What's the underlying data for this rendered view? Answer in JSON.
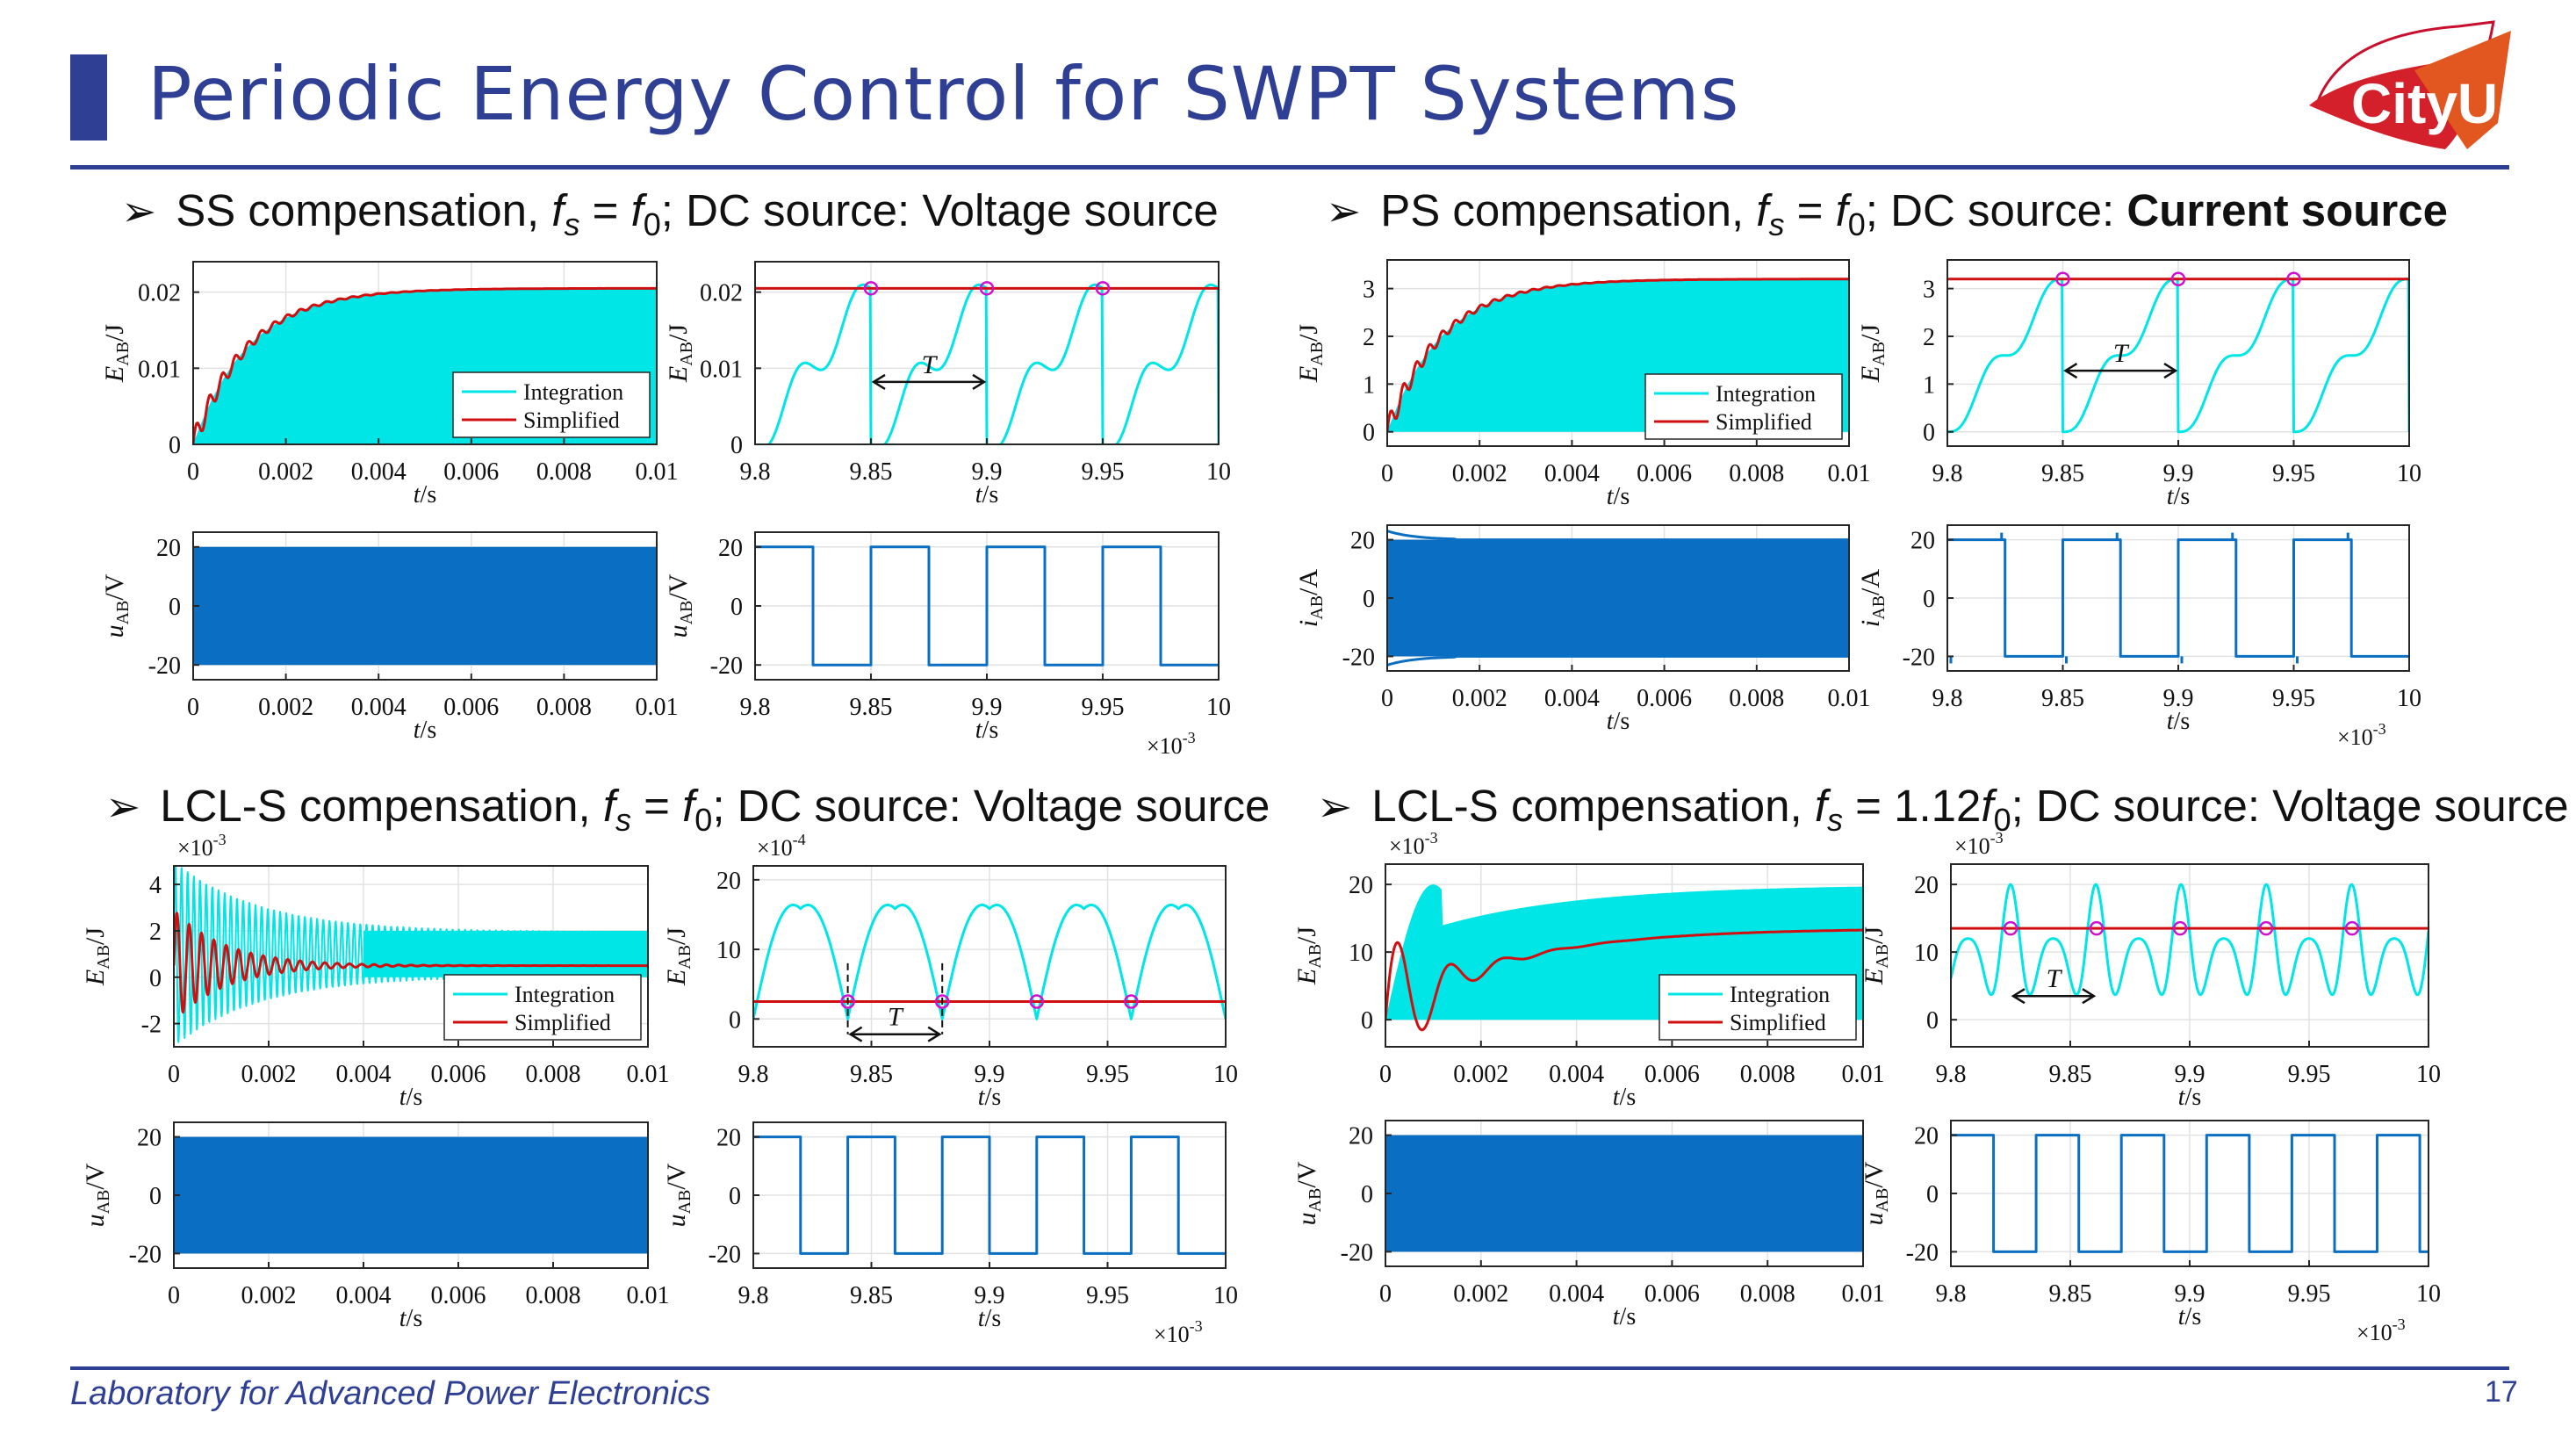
{
  "title": "Periodic Energy Control for SWPT Systems",
  "footer": "Laboratory for Advanced Power Electronics",
  "page_number": "17",
  "logo_text": "CityU",
  "sections": [
    {
      "id": "ss",
      "parts": [
        {
          "t": "SS compensation, "
        },
        {
          "t": "f",
          "i": true
        },
        {
          "t": "s",
          "i": true,
          "sub": true
        },
        {
          "t": " = "
        },
        {
          "t": "f",
          "i": true
        },
        {
          "t": "0",
          "sub": true
        },
        {
          "t": "; DC source: Voltage source"
        }
      ]
    },
    {
      "id": "ps",
      "parts": [
        {
          "t": "PS compensation, "
        },
        {
          "t": "f",
          "i": true
        },
        {
          "t": "s",
          "i": true,
          "sub": true
        },
        {
          "t": " = "
        },
        {
          "t": "f",
          "i": true
        },
        {
          "t": "0",
          "sub": true
        },
        {
          "t": "; DC source: "
        },
        {
          "t": "Current source",
          "b": true
        }
      ]
    },
    {
      "id": "lcls1",
      "parts": [
        {
          "t": "LCL-S compensation, "
        },
        {
          "t": "f",
          "i": true
        },
        {
          "t": "s",
          "i": true,
          "sub": true
        },
        {
          "t": " = "
        },
        {
          "t": "f",
          "i": true
        },
        {
          "t": "0",
          "sub": true
        },
        {
          "t": "; DC source: Voltage source"
        }
      ]
    },
    {
      "id": "lcls2",
      "parts": [
        {
          "t": "LCL-S compensation, "
        },
        {
          "t": "f",
          "i": true
        },
        {
          "t": "s",
          "i": true,
          "sub": true
        },
        {
          "t": " = 1.12"
        },
        {
          "t": "f",
          "i": true
        },
        {
          "t": "0",
          "sub": true
        },
        {
          "t": "; DC source: Voltage source"
        }
      ]
    }
  ],
  "colors": {
    "accent": "#2e3f94",
    "integration": "#00e5e5",
    "simplified": "#d01010",
    "fill_blue": "#0a6fc2",
    "marker": "#d010d0"
  },
  "chart_data": [
    {
      "id": "ss-energy-full",
      "type": "area",
      "xlabel": "t/s",
      "ylabel": "E_AB/J",
      "xlim": [
        0,
        0.01
      ],
      "ylim": [
        0,
        0.024
      ],
      "xticks": [
        "0",
        "0.002",
        "0.004",
        "0.006",
        "0.008",
        "0.01"
      ],
      "yticks": [
        "0",
        "0.01",
        "0.02"
      ],
      "legend": [
        "Integration",
        "Simplified"
      ],
      "legend_placement": "bottom-right",
      "series": [
        {
          "name": "Integration",
          "envelope_max": 0.0205
        },
        {
          "name": "Simplified",
          "final_value": 0.0205,
          "time_constant": 0.0012
        }
      ]
    },
    {
      "id": "ss-energy-zoom",
      "type": "line",
      "xlabel": "t/s",
      "ylabel": "E_AB/J",
      "xlim": [
        9.8,
        10
      ],
      "ylim": [
        0,
        0.024
      ],
      "xticks": [
        "9.8",
        "9.85",
        "9.9",
        "9.95",
        "10"
      ],
      "yticks": [
        "0",
        "0.01",
        "0.02"
      ],
      "series": [
        {
          "name": "Integration",
          "period": 0.05,
          "peak": 0.0205
        },
        {
          "name": "Simplified",
          "value": 0.0205
        }
      ],
      "markers_x": [
        9.85,
        9.9,
        9.95
      ],
      "annotation": "T"
    },
    {
      "id": "ss-voltage-full",
      "type": "area",
      "xlabel": "t/s",
      "ylabel": "u_AB/V",
      "xlim": [
        0,
        0.01
      ],
      "ylim": [
        -25,
        25
      ],
      "xticks": [
        "0",
        "0.002",
        "0.004",
        "0.006",
        "0.008",
        "0.01"
      ],
      "yticks": [
        "-20",
        "0",
        "20"
      ],
      "series": [
        {
          "name": "u_AB",
          "amplitude": 20
        }
      ]
    },
    {
      "id": "ss-voltage-zoom",
      "type": "line",
      "xlabel": "t/s",
      "ylabel": "u_AB/V",
      "xlim": [
        9.8,
        10
      ],
      "ylim": [
        -25,
        25
      ],
      "xticks": [
        "9.8",
        "9.85",
        "9.9",
        "9.95",
        "10"
      ],
      "yticks": [
        "-20",
        "0",
        "20"
      ],
      "x_multiplier": "×10-3",
      "series": [
        {
          "name": "u_AB",
          "high_intervals": [
            [
              9.8,
              9.825
            ],
            [
              9.85,
              9.875
            ],
            [
              9.9,
              9.925
            ],
            [
              9.95,
              9.975
            ]
          ],
          "amplitude": 20
        }
      ]
    },
    {
      "id": "ps-energy-full",
      "type": "area",
      "xlabel": "t/s",
      "ylabel": "E_AB/J",
      "xlim": [
        0,
        0.01
      ],
      "ylim": [
        -0.3,
        3.6
      ],
      "xticks": [
        "0",
        "0.002",
        "0.004",
        "0.006",
        "0.008",
        "0.01"
      ],
      "yticks": [
        "0",
        "1",
        "2",
        "3"
      ],
      "legend": [
        "Integration",
        "Simplified"
      ],
      "legend_placement": "bottom-right",
      "series": [
        {
          "name": "Integration",
          "envelope_max": 3.2
        },
        {
          "name": "Simplified",
          "final_value": 3.2,
          "time_constant": 0.0012
        }
      ]
    },
    {
      "id": "ps-energy-zoom",
      "type": "line",
      "xlabel": "t/s",
      "ylabel": "E_AB/J",
      "xlim": [
        9.8,
        10
      ],
      "ylim": [
        -0.3,
        3.6
      ],
      "xticks": [
        "9.8",
        "9.85",
        "9.9",
        "9.95",
        "10"
      ],
      "yticks": [
        "0",
        "1",
        "2",
        "3"
      ],
      "series": [
        {
          "name": "Integration",
          "period": 0.05,
          "peak": 3.2
        },
        {
          "name": "Simplified",
          "value": 3.2
        }
      ],
      "markers_x": [
        9.85,
        9.9,
        9.95
      ],
      "annotation": "T"
    },
    {
      "id": "ps-current-full",
      "type": "area",
      "xlabel": "t/s",
      "ylabel": "i_AB/A",
      "xlim": [
        0,
        0.01
      ],
      "ylim": [
        -25,
        25
      ],
      "xticks": [
        "0",
        "0.002",
        "0.004",
        "0.006",
        "0.008",
        "0.01"
      ],
      "yticks": [
        "-20",
        "0",
        "20"
      ],
      "series": [
        {
          "name": "i_AB",
          "amplitude": 20
        }
      ]
    },
    {
      "id": "ps-current-zoom",
      "type": "line",
      "xlabel": "t/s",
      "ylabel": "i_AB/A",
      "xlim": [
        9.8,
        10
      ],
      "ylim": [
        -25,
        25
      ],
      "xticks": [
        "9.8",
        "9.85",
        "9.9",
        "9.95",
        "10"
      ],
      "yticks": [
        "-20",
        "0",
        "20"
      ],
      "x_multiplier": "×10-3",
      "series": [
        {
          "name": "i_AB",
          "high_intervals": [
            [
              9.8,
              9.825
            ],
            [
              9.85,
              9.875
            ],
            [
              9.9,
              9.925
            ],
            [
              9.95,
              9.975
            ]
          ],
          "amplitude": 20
        }
      ]
    },
    {
      "id": "lcls1-energy-full",
      "type": "line",
      "xlabel": "t/s",
      "ylabel": "E_AB/J",
      "y_multiplier": "×10-3",
      "xlim": [
        0,
        0.01
      ],
      "ylim": [
        -3,
        4.8
      ],
      "xticks": [
        "0",
        "0.002",
        "0.004",
        "0.006",
        "0.008",
        "0.01"
      ],
      "yticks": [
        "-2",
        "0",
        "2",
        "4"
      ],
      "legend": [
        "Integration",
        "Simplified"
      ],
      "legend_placement": "bottom-right",
      "series": [
        {
          "name": "Integration",
          "final_band": [
            0,
            2
          ]
        },
        {
          "name": "Simplified",
          "final_value": 0.5
        }
      ]
    },
    {
      "id": "lcls1-energy-zoom",
      "type": "line",
      "xlabel": "t/s",
      "ylabel": "E_AB/J",
      "y_multiplier": "×10-4",
      "xlim": [
        9.8,
        10
      ],
      "ylim": [
        -4,
        22
      ],
      "xticks": [
        "9.8",
        "9.85",
        "9.9",
        "9.95",
        "10"
      ],
      "yticks": [
        "0",
        "10",
        "20"
      ],
      "series": [
        {
          "name": "Integration",
          "peak": 18,
          "period": 0.04
        },
        {
          "name": "Simplified",
          "value": 2.5
        }
      ],
      "markers_x": [
        9.84,
        9.88,
        9.92,
        9.96
      ],
      "annotation": "T"
    },
    {
      "id": "lcls1-voltage-full",
      "type": "area",
      "xlabel": "t/s",
      "ylabel": "u_AB/V",
      "xlim": [
        0,
        0.01
      ],
      "ylim": [
        -25,
        25
      ],
      "xticks": [
        "0",
        "0.002",
        "0.004",
        "0.006",
        "0.008",
        "0.01"
      ],
      "yticks": [
        "-20",
        "0",
        "20"
      ],
      "series": [
        {
          "name": "u_AB",
          "amplitude": 20
        }
      ]
    },
    {
      "id": "lcls1-voltage-zoom",
      "type": "line",
      "xlabel": "t/s",
      "ylabel": "u_AB/V",
      "xlim": [
        9.8,
        10
      ],
      "ylim": [
        -25,
        25
      ],
      "xticks": [
        "9.8",
        "9.85",
        "9.9",
        "9.95",
        "10"
      ],
      "yticks": [
        "-20",
        "0",
        "20"
      ],
      "x_multiplier": "×10-3",
      "series": [
        {
          "name": "u_AB",
          "high_intervals": [
            [
              9.8,
              9.82
            ],
            [
              9.84,
              9.86
            ],
            [
              9.88,
              9.9
            ],
            [
              9.92,
              9.94
            ],
            [
              9.96,
              9.98
            ]
          ],
          "amplitude": 20
        }
      ]
    },
    {
      "id": "lcls2-energy-full",
      "type": "area",
      "xlabel": "t/s",
      "ylabel": "E_AB/J",
      "y_multiplier": "×10-3",
      "xlim": [
        0,
        0.01
      ],
      "ylim": [
        -4,
        23
      ],
      "xticks": [
        "0",
        "0.002",
        "0.004",
        "0.006",
        "0.008",
        "0.01"
      ],
      "yticks": [
        "0",
        "10",
        "20"
      ],
      "legend": [
        "Integration",
        "Simplified"
      ],
      "legend_placement": "bottom-right",
      "series": [
        {
          "name": "Integration",
          "envelope_max": 20
        },
        {
          "name": "Simplified",
          "final_value": 13.5
        }
      ]
    },
    {
      "id": "lcls2-energy-zoom",
      "type": "line",
      "xlabel": "t/s",
      "ylabel": "E_AB/J",
      "y_multiplier": "×10-3",
      "xlim": [
        9.8,
        10
      ],
      "ylim": [
        -4,
        23
      ],
      "xticks": [
        "9.8",
        "9.85",
        "9.9",
        "9.95",
        "10"
      ],
      "yticks": [
        "0",
        "10",
        "20"
      ],
      "series": [
        {
          "name": "Integration",
          "peak": 20,
          "period": 0.0357
        },
        {
          "name": "Simplified",
          "value": 13.5
        }
      ],
      "markers_x": [
        9.825,
        9.861,
        9.896,
        9.932,
        9.968
      ],
      "annotation": "T"
    },
    {
      "id": "lcls2-voltage-full",
      "type": "area",
      "xlabel": "t/s",
      "ylabel": "u_AB/V",
      "xlim": [
        0,
        0.01
      ],
      "ylim": [
        -25,
        25
      ],
      "xticks": [
        "0",
        "0.002",
        "0.004",
        "0.006",
        "0.008",
        "0.01"
      ],
      "yticks": [
        "-20",
        "0",
        "20"
      ],
      "series": [
        {
          "name": "u_AB",
          "amplitude": 20
        }
      ]
    },
    {
      "id": "lcls2-voltage-zoom",
      "type": "line",
      "xlabel": "t/s",
      "ylabel": "u_AB/V",
      "xlim": [
        9.8,
        10
      ],
      "ylim": [
        -25,
        25
      ],
      "xticks": [
        "9.8",
        "9.85",
        "9.9",
        "9.95",
        "10"
      ],
      "yticks": [
        "-20",
        "0",
        "20"
      ],
      "x_multiplier": "×10-3",
      "series": [
        {
          "name": "u_AB",
          "period": 0.0357,
          "duty": 0.5,
          "amplitude": 20
        }
      ]
    }
  ]
}
